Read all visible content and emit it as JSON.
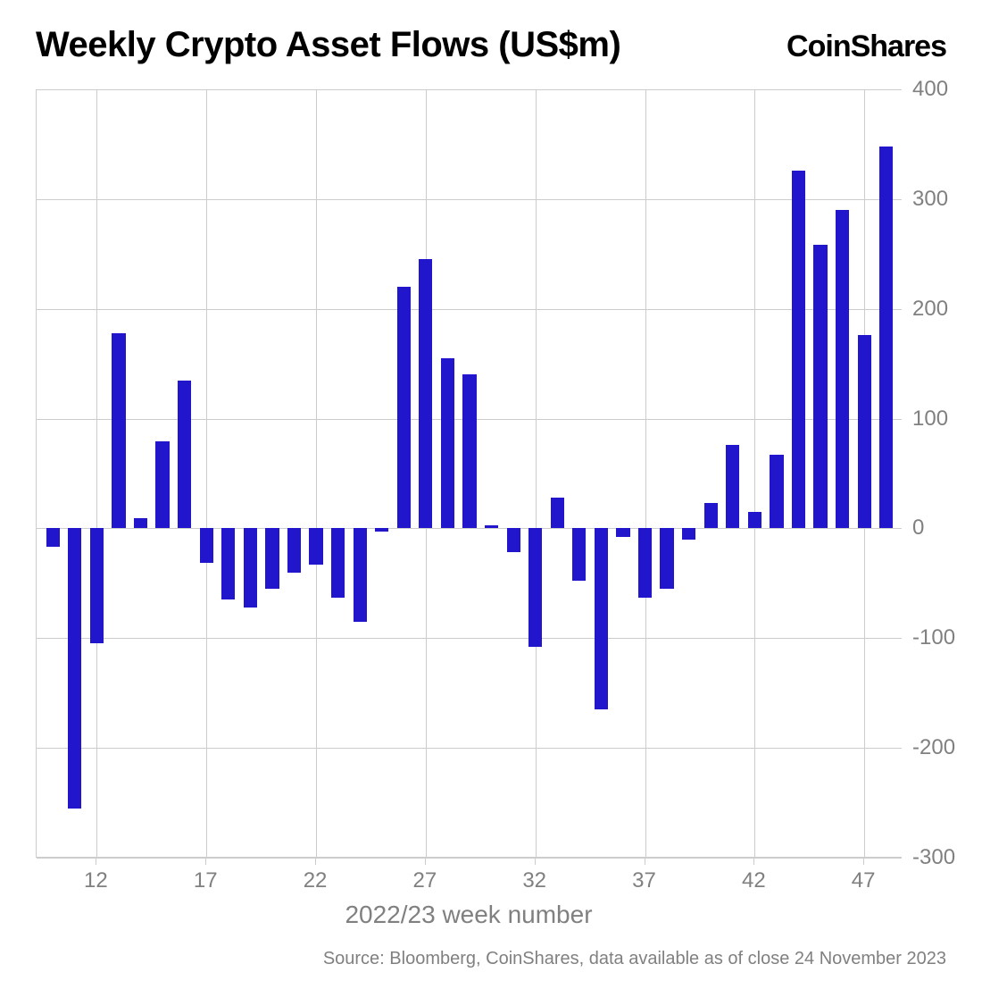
{
  "title": "Weekly Crypto Asset Flows (US$m)",
  "brand": "CoinShares",
  "x_axis_label": "2022/23 week number",
  "source_note": "Source: Bloomberg, CoinShares, data available as of close 24 November 2023",
  "chart": {
    "type": "bar",
    "bar_color": "#2116cc",
    "background_color": "#ffffff",
    "grid_color": "#cccccc",
    "text_color": "#808080",
    "title_color": "#000000",
    "title_fontsize": 40,
    "label_fontsize": 24,
    "axis_label_fontsize": 28,
    "ylim": [
      -300,
      400
    ],
    "ytick_step": 100,
    "y_ticks": [
      -300,
      -200,
      -100,
      0,
      100,
      200,
      300,
      400
    ],
    "x_ticks": [
      12,
      17,
      22,
      27,
      32,
      37,
      42,
      47
    ],
    "x_start": 10,
    "x_end": 47,
    "bar_width_ratio": 0.62,
    "values": [
      {
        "week": 10,
        "value": -17
      },
      {
        "week": 11,
        "value": -255
      },
      {
        "week": 12,
        "value": -105
      },
      {
        "week": 13,
        "value": 178
      },
      {
        "week": 14,
        "value": 9
      },
      {
        "week": 15,
        "value": 79
      },
      {
        "week": 16,
        "value": 135
      },
      {
        "week": 17,
        "value": -31
      },
      {
        "week": 18,
        "value": -65
      },
      {
        "week": 19,
        "value": -72
      },
      {
        "week": 20,
        "value": -55
      },
      {
        "week": 21,
        "value": -40
      },
      {
        "week": 22,
        "value": -33
      },
      {
        "week": 23,
        "value": -63
      },
      {
        "week": 24,
        "value": -85
      },
      {
        "week": 25,
        "value": -3
      },
      {
        "week": 26,
        "value": 220
      },
      {
        "week": 27,
        "value": 245
      },
      {
        "week": 28,
        "value": 155
      },
      {
        "week": 29,
        "value": 140
      },
      {
        "week": 30,
        "value": 3
      },
      {
        "week": 31,
        "value": -22
      },
      {
        "week": 32,
        "value": -108
      },
      {
        "week": 33,
        "value": 28
      },
      {
        "week": 34,
        "value": -48
      },
      {
        "week": 35,
        "value": -165
      },
      {
        "week": 36,
        "value": -8
      },
      {
        "week": 37,
        "value": -63
      },
      {
        "week": 38,
        "value": -55
      },
      {
        "week": 39,
        "value": -10
      },
      {
        "week": 40,
        "value": 23
      },
      {
        "week": 41,
        "value": 76
      },
      {
        "week": 42,
        "value": 15
      },
      {
        "week": 43,
        "value": 67
      },
      {
        "week": 44,
        "value": 326
      },
      {
        "week": 45,
        "value": 258
      },
      {
        "week": 46,
        "value": 290
      },
      {
        "week": 47,
        "value": 176
      },
      {
        "week": 48,
        "value": 348
      }
    ]
  }
}
